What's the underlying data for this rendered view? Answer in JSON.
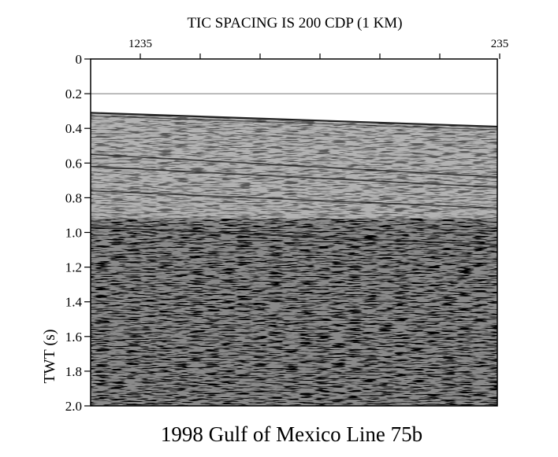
{
  "chart_data": {
    "type": "seismic-section",
    "top_title": "TIC SPACING IS 200 CDP (1 KM)",
    "top_tick_labels": [
      "1235",
      "235"
    ],
    "top_tick_count": 7,
    "ylabel": "TWT (s)",
    "y_ticks": [
      "0",
      "0.2",
      "0.4",
      "0.6",
      "0.8",
      "1.0",
      "1.2",
      "1.4",
      "1.6",
      "1.8",
      "2.0"
    ],
    "ylim": [
      0,
      2.0
    ],
    "y_inverted": true,
    "caption": "1998 Gulf of Mexico Line 75b",
    "seafloor_twt": {
      "left": 0.31,
      "right": 0.39
    },
    "strong_reflectors": [
      {
        "left": 0.55,
        "right": 0.68
      },
      {
        "left": 0.62,
        "right": 0.74
      },
      {
        "left": 0.76,
        "right": 0.86
      },
      {
        "left": 0.97,
        "right": 1.07
      }
    ]
  }
}
